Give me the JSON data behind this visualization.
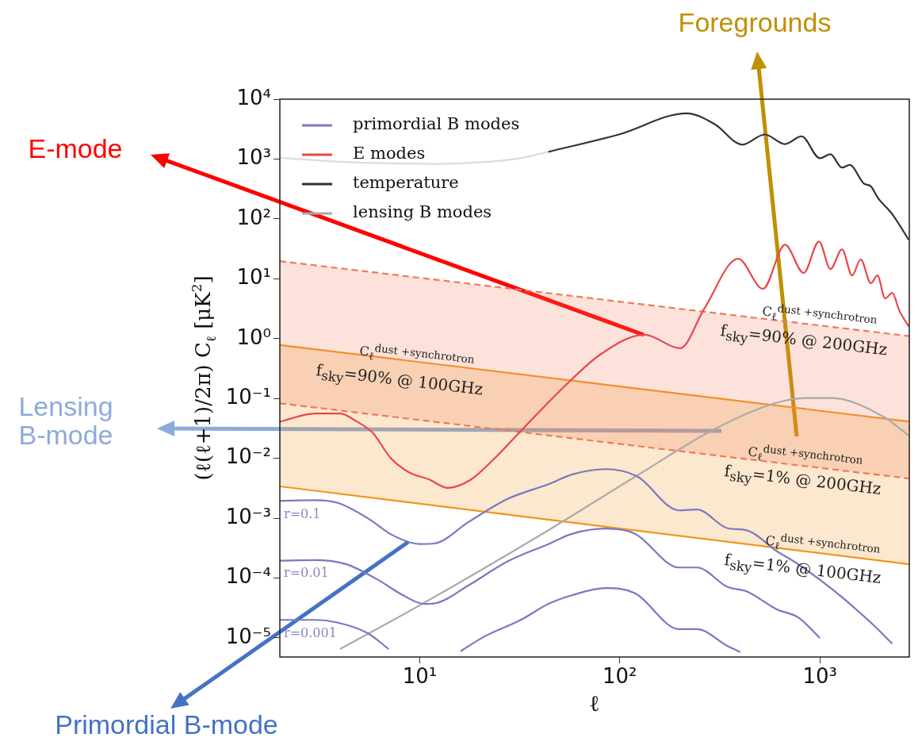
{
  "chart_data": {
    "type": "line",
    "xlabel": "ℓ",
    "ylabel": "(ℓ(ℓ+1)/2π) C$_{ℓ}$ [μK$^{2}$]",
    "log": "xy",
    "legend": "top left",
    "xlim": [
      2,
      2800
    ],
    "ylim": [
      4.8e-06,
      10000
    ],
    "xticks": [
      {
        "value": 10,
        "label": "10¹"
      },
      {
        "value": 100,
        "label": "10²"
      },
      {
        "value": 1000,
        "label": "10³"
      }
    ],
    "yticks": [
      {
        "value": 1e-05,
        "label": "10⁻⁵"
      },
      {
        "value": 0.0001,
        "label": "10⁻⁴"
      },
      {
        "value": 0.001,
        "label": "10⁻³"
      },
      {
        "value": 0.01,
        "label": "10⁻²"
      },
      {
        "value": 0.1,
        "label": "10⁻¹"
      },
      {
        "value": 1,
        "label": "10⁰"
      },
      {
        "value": 10,
        "label": "10¹"
      },
      {
        "value": 100,
        "label": "10²"
      },
      {
        "value": 1000,
        "label": "10³"
      },
      {
        "value": 10000,
        "label": "10⁴"
      }
    ],
    "series": [
      {
        "name": "primordial B modes",
        "color": "#7b77c0",
        "x": [
          2,
          3,
          3.9,
          5.5,
          7.4,
          10,
          11.9,
          17.6,
          27.5,
          44,
          58,
          85,
          122,
          198,
          243,
          346,
          430,
          610,
          780,
          1180,
          1850,
          2300
        ],
        "values": [
          0.00195,
          0.002,
          0.0018,
          0.001,
          0.00051,
          0.00037,
          0.00038,
          0.00087,
          0.0021,
          0.0037,
          0.0054,
          0.0066,
          0.005,
          0.00135,
          0.0014,
          0.00068,
          0.00063,
          0.00028,
          0.00017,
          6.1e-05,
          1.65e-05,
          8e-06
        ]
      },
      {
        "color": "#7b77c0",
        "x": [
          2,
          3,
          4.3,
          6.2,
          8.3,
          10.5,
          12,
          17.6,
          27.5,
          44,
          58,
          85,
          119,
          198,
          243,
          346,
          430,
          610,
          780,
          1000
        ],
        "values": [
          0.000195,
          0.0002,
          0.00017,
          9.3e-05,
          5.1e-05,
          3.7e-05,
          3.8e-05,
          7.6e-05,
          0.00019,
          0.00037,
          0.00055,
          0.00067,
          0.00055,
          0.00015,
          0.00015,
          7.1e-05,
          6e-05,
          3e-05,
          2.2e-05,
          1e-05
        ]
      },
      {
        "color": "#7b77c0",
        "x": [
          2,
          3,
          3.9,
          5.5,
          7,
          10,
          16,
          21,
          32,
          44,
          58,
          85,
          119,
          198,
          243,
          346,
          400
        ],
        "values": [
          2e-05,
          2e-05,
          1.8e-05,
          1.2e-05,
          6.5e-06,
          null,
          6e-06,
          1.05e-05,
          2e-05,
          3.7e-05,
          5.2e-05,
          6.8e-05,
          5.6e-05,
          1.4e-05,
          1.4e-05,
          7.3e-06,
          5.8e-06
        ]
      },
      {
        "name": "E modes",
        "color": "#e8474a",
        "x": [
          2,
          3,
          4,
          4.8,
          5.8,
          7.2,
          8.8,
          11.2,
          13.8,
          18,
          23.6,
          31.8,
          53,
          81,
          133,
          200,
          265,
          390,
          520,
          670,
          830,
          990,
          1130,
          1290,
          1450,
          1600,
          1800,
          1940,
          2120,
          2300,
          2500,
          2780
        ],
        "values": [
          0.041,
          0.056,
          0.056,
          0.042,
          0.027,
          0.0099,
          0.0059,
          0.0044,
          0.0032,
          0.0044,
          0.0099,
          0.028,
          0.16,
          0.56,
          1.16,
          0.69,
          3.2,
          21.6,
          6.8,
          37,
          12.5,
          42,
          14.5,
          31,
          11.4,
          21,
          8.4,
          11.4,
          4.7,
          5.8,
          2.9,
          1.6
        ]
      },
      {
        "name": "temperature",
        "color": "#333333",
        "x": [
          44,
          99,
          216,
          299,
          410,
          530,
          670,
          810,
          1000,
          1130,
          1290,
          1410,
          1660,
          1800,
          1950,
          2300,
          2780
        ],
        "values": [
          1320,
          2570,
          5800,
          3800,
          1740,
          2570,
          1780,
          2400,
          1030,
          1200,
          720,
          800,
          390,
          350,
          225,
          120,
          45
        ]
      },
      {
        "color": "#dcdcdc",
        "x": [
          2,
          4,
          8,
          12,
          20,
          30,
          44
        ],
        "values": [
          1050,
          900,
          840,
          830,
          880,
          1000,
          1320
        ]
      },
      {
        "name": "lensing B modes",
        "color": "#aaaaaa",
        "x": [
          4,
          10,
          44,
          119,
          299,
          594,
          850,
          1140,
          2090,
          2780
        ],
        "values": [
          6.5e-06,
          3.5e-05,
          0.00063,
          0.0049,
          0.031,
          0.083,
          0.102,
          0.102,
          0.049,
          0.024
        ]
      },
      {
        "color": "#f07a5a",
        "line_style": "dashed",
        "x": [
          2,
          2800
        ],
        "values": [
          19.7,
          1.1
        ],
        "lower": [
          0.083,
          0.0046
        ],
        "upper": [
          19.7,
          1.1
        ]
      },
      {
        "color": "#f07a5a",
        "line_style": "dashed",
        "x": [
          2,
          2800
        ],
        "values": [
          0.083,
          0.0046
        ]
      },
      {
        "color": "#f0961e",
        "x": [
          2,
          2800
        ],
        "values": [
          0.78,
          0.041
        ],
        "lower": [
          0.0034,
          0.00017
        ],
        "upper": [
          0.78,
          0.041
        ]
      },
      {
        "color": "#f0961e",
        "x": [
          2,
          2800
        ],
        "values": [
          0.0034,
          0.00017
        ]
      }
    ],
    "annotations": [
      "E-mode",
      "Lensing B-mode",
      "Primordial B-mode",
      "Foregrounds",
      "C$_{ℓ}$$^{dust +synchrotron}$",
      "f$_{sky}$=90% @ 200GHz",
      "C$_{ℓ}$$^{dust +synchrotron}$",
      "f$_{sky}$=90% @ 100GHz",
      "C$_{ℓ}$$^{dust +synchrotron}$",
      "f$_{sky}$=1% @ 200GHz",
      "C$_{ℓ}$$^{dust +synchrotron}$",
      "f$_{sky}$=1% @ 100GHz",
      "r=0.1",
      "r=0.01",
      "r=0.001"
    ]
  }
}
